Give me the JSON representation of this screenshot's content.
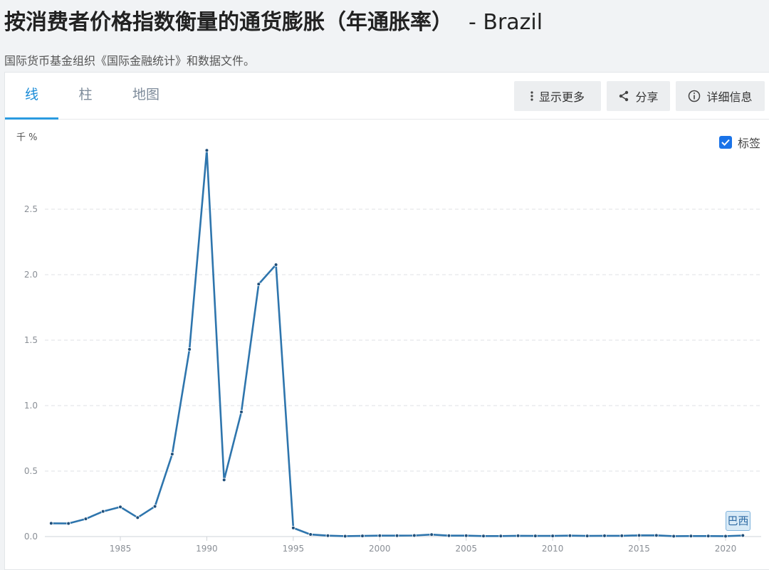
{
  "header": {
    "title": "按消费者价格指数衡量的通货膨胀（年通胀率）",
    "title_suffix": "- Brazil",
    "source": "国际货币基金组织《国际金融统计》和数据文件。"
  },
  "tabs": [
    {
      "label": "线",
      "active": true
    },
    {
      "label": "柱",
      "active": false
    },
    {
      "label": "地图",
      "active": false
    }
  ],
  "toolbar": {
    "more_label": "显示更多",
    "share_label": "分享",
    "details_label": "详细信息"
  },
  "labels_toggle": {
    "label": "标签",
    "checked": true
  },
  "colors": {
    "accent": "#1a8cd8",
    "series": "#2e75ad"
  },
  "chart_data": {
    "type": "line",
    "y_unit": "千 %",
    "ylim": [
      0,
      3.0
    ],
    "yticks": [
      "0.0",
      "0.5",
      "1.0",
      "1.5",
      "2.0",
      "2.5"
    ],
    "xticks": [
      "1985",
      "1990",
      "1995",
      "2000",
      "2005",
      "2010",
      "2015",
      "2020"
    ],
    "grid": true,
    "series": [
      {
        "name": "巴西",
        "x": [
          1981,
          1982,
          1983,
          1984,
          1985,
          1986,
          1987,
          1988,
          1989,
          1990,
          1991,
          1992,
          1993,
          1994,
          1995,
          1996,
          1997,
          1998,
          1999,
          2000,
          2001,
          2002,
          2003,
          2004,
          2005,
          2006,
          2007,
          2008,
          2009,
          2010,
          2011,
          2012,
          2013,
          2014,
          2015,
          2016,
          2017,
          2018,
          2019,
          2020,
          2021
        ],
        "values": [
          0.101,
          0.1,
          0.135,
          0.192,
          0.226,
          0.145,
          0.23,
          0.63,
          1.43,
          2.95,
          0.433,
          0.952,
          1.928,
          2.076,
          0.066,
          0.016,
          0.007,
          0.003,
          0.005,
          0.007,
          0.007,
          0.008,
          0.015,
          0.007,
          0.007,
          0.004,
          0.004,
          0.006,
          0.005,
          0.005,
          0.007,
          0.005,
          0.006,
          0.006,
          0.009,
          0.009,
          0.003,
          0.004,
          0.004,
          0.003,
          0.008
        ]
      }
    ]
  }
}
